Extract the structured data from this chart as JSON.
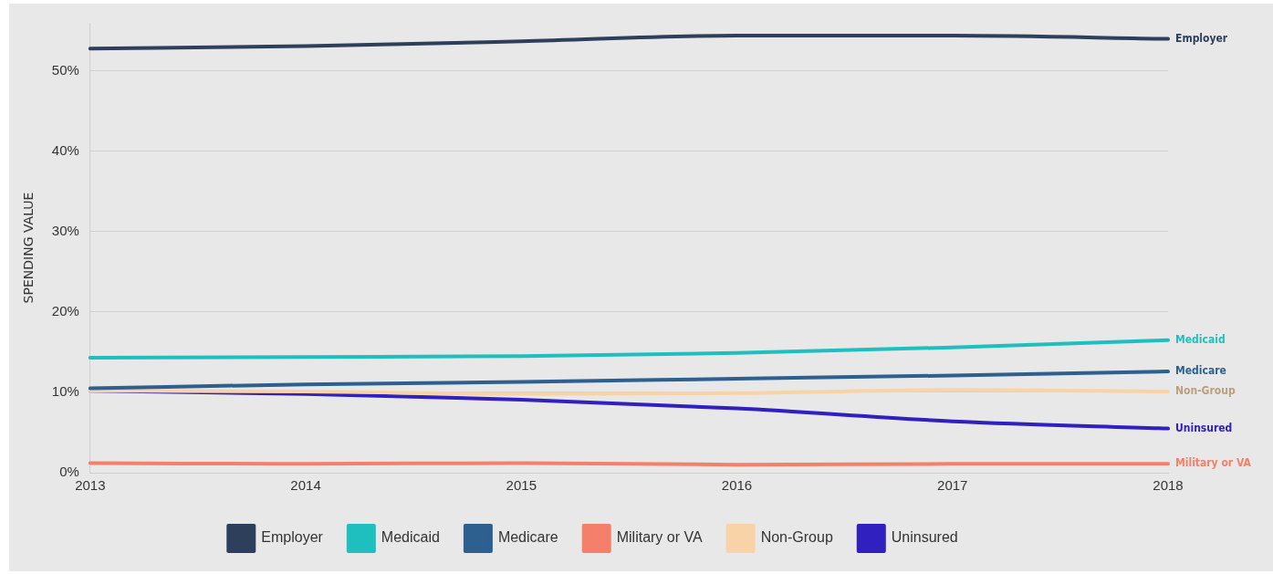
{
  "chart_data": {
    "type": "line",
    "ylabel": "SPENDING VALUE",
    "categories": [
      "2013",
      "2014",
      "2015",
      "2016",
      "2017",
      "2018"
    ],
    "series": [
      {
        "name": "Employer",
        "color": "#2e3f5c",
        "values": [
          52.8,
          53.1,
          53.7,
          54.4,
          54.4,
          54.0
        ]
      },
      {
        "name": "Medicaid",
        "color": "#1fbfbf",
        "values": [
          14.3,
          14.4,
          14.5,
          14.9,
          15.6,
          16.5
        ]
      },
      {
        "name": "Medicare",
        "color": "#2d5f8f",
        "values": [
          10.5,
          11.0,
          11.3,
          11.7,
          12.1,
          12.6
        ]
      },
      {
        "name": "Military or VA",
        "color": "#f47f6a",
        "values": [
          1.2,
          1.1,
          1.2,
          1.0,
          1.1,
          1.1
        ]
      },
      {
        "name": "Non-Group",
        "color": "#f9d3a8",
        "values": [
          10.2,
          10.1,
          9.8,
          9.9,
          10.3,
          10.1
        ]
      },
      {
        "name": "Uninsured",
        "color": "#3020c0",
        "values": [
          10.2,
          9.8,
          9.1,
          8.0,
          6.4,
          5.5
        ]
      }
    ],
    "ylim": [
      0,
      56
    ],
    "yticks": [
      {
        "value": 0,
        "label": "0%"
      },
      {
        "value": 10,
        "label": "10%"
      },
      {
        "value": 20,
        "label": "20%"
      },
      {
        "value": 30,
        "label": "30%"
      },
      {
        "value": 40,
        "label": "40%"
      },
      {
        "value": 50,
        "label": "50%"
      }
    ],
    "grid": "y",
    "legend": "bottom",
    "marker": "none",
    "line_style": "solid"
  }
}
